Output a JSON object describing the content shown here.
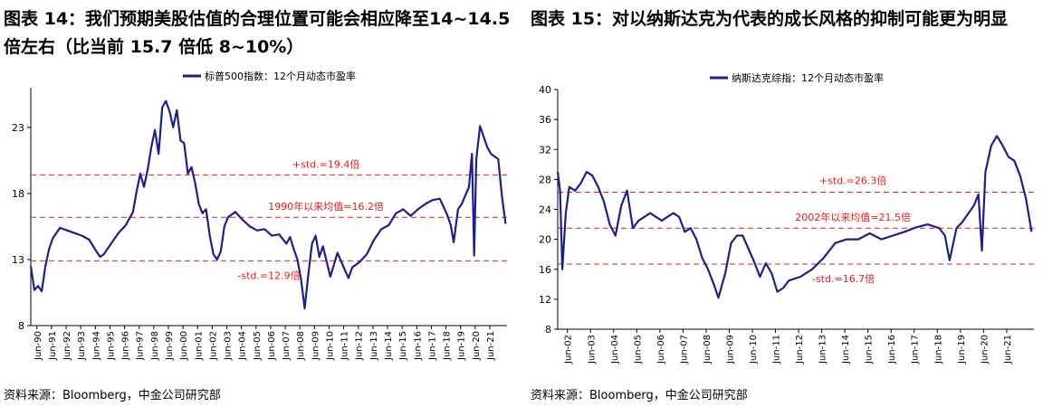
{
  "figures": [
    {
      "title": "图表 14：我们预期美股估值的合理位置可能会相应降至14~14.5 倍左右（比当前 15.7 倍低 8~10%）",
      "source": "资料来源：Bloomberg，中金公司研究部",
      "chart_data": {
        "type": "line",
        "legend_position": "top-center",
        "series": [
          {
            "name": "标普500指数：12个月动态市盈率",
            "color": "#1f1f8a",
            "x": [
              1990.0,
              1990.25,
              1990.5,
              1990.75,
              1991.0,
              1991.25,
              1991.5,
              1991.75,
              1992.0,
              1992.5,
              1993.0,
              1993.5,
              1994.0,
              1994.5,
              1994.75,
              1995.0,
              1995.5,
              1996.0,
              1996.5,
              1997.0,
              1997.25,
              1997.5,
              1997.75,
              1998.0,
              1998.25,
              1998.5,
              1998.75,
              1999.0,
              1999.25,
              1999.5,
              1999.75,
              2000.0,
              2000.25,
              2000.5,
              2000.75,
              2001.0,
              2001.25,
              2001.5,
              2001.75,
              2002.0,
              2002.25,
              2002.5,
              2002.75,
              2003.0,
              2003.25,
              2003.5,
              2004.0,
              2004.5,
              2005.0,
              2005.5,
              2006.0,
              2006.5,
              2007.0,
              2007.5,
              2007.75,
              2008.0,
              2008.25,
              2008.5,
              2008.75,
              2008.95,
              2009.25,
              2009.5,
              2009.75,
              2010.0,
              2010.5,
              2010.75,
              2011.0,
              2011.5,
              2011.75,
              2012.0,
              2012.5,
              2013.0,
              2013.5,
              2014.0,
              2014.5,
              2015.0,
              2015.5,
              2016.0,
              2016.5,
              2017.0,
              2017.5,
              2018.0,
              2018.5,
              2018.75,
              2018.95,
              2019.25,
              2019.5,
              2020.0,
              2020.2,
              2020.35,
              2020.5,
              2020.75,
              2021.0,
              2021.25,
              2021.5,
              2021.75,
              2022.0,
              2022.25,
              2022.5
            ],
            "values": [
              12.5,
              10.7,
              11.0,
              10.6,
              12.5,
              13.8,
              14.6,
              15.0,
              15.4,
              15.2,
              15.0,
              14.8,
              14.5,
              13.6,
              13.2,
              13.4,
              14.2,
              15.0,
              15.6,
              16.6,
              18.2,
              19.5,
              18.5,
              19.8,
              21.5,
              22.8,
              21.0,
              24.5,
              25.0,
              24.2,
              23.0,
              24.3,
              22.0,
              21.8,
              19.5,
              20.0,
              18.8,
              17.2,
              16.5,
              16.8,
              14.8,
              13.4,
              13.0,
              13.6,
              15.5,
              16.2,
              16.6,
              16.0,
              15.5,
              15.2,
              15.3,
              14.8,
              14.9,
              14.2,
              14.7,
              13.8,
              13.0,
              11.5,
              9.3,
              11.4,
              14.2,
              14.8,
              13.2,
              14.0,
              11.7,
              12.6,
              13.5,
              12.2,
              11.6,
              12.4,
              12.8,
              13.4,
              14.5,
              15.3,
              15.6,
              16.5,
              16.8,
              16.3,
              16.8,
              17.2,
              17.5,
              17.6,
              16.4,
              15.6,
              14.3,
              16.8,
              17.2,
              18.5,
              21.0,
              13.3,
              20.6,
              23.1,
              22.3,
              21.5,
              21.0,
              20.8,
              20.6,
              17.8,
              15.7
            ]
          }
        ],
        "reference_lines": [
          {
            "label": "+std.=19.4倍",
            "value": 19.4,
            "color": "#e41a1c"
          },
          {
            "label": "1990年以来均值=16.2倍",
            "value": 16.2,
            "color": "#e41a1c"
          },
          {
            "label": "-std.=12.9倍",
            "value": 12.9,
            "color": "#e41a1c"
          }
        ],
        "y_ticks": [
          8,
          13,
          18,
          23
        ],
        "ylim": [
          8,
          26
        ],
        "xlim": [
          1990.0,
          2022.6
        ],
        "x_tick_labels": [
          "Jun-90",
          "Jun-91",
          "Jun-92",
          "Jun-93",
          "Jun-94",
          "Jun-95",
          "Jun-96",
          "Jun-97",
          "Jun-98",
          "Jun-99",
          "Jun-00",
          "Jun-01",
          "Jun-02",
          "Jun-03",
          "Jun-04",
          "Jun-05",
          "Jun-06",
          "Jun-07",
          "Jun-08",
          "Jun-09",
          "Jun-10",
          "Jun-11",
          "Jun-12",
          "Jun-13",
          "Jun-14",
          "Jun-15",
          "Jun-16",
          "Jun-17",
          "Jun-18",
          "Jun-19",
          "Jun-20",
          "Jun-21"
        ],
        "grid": false
      }
    },
    {
      "title": "图表 15：对以纳斯达克为代表的成长风格的抑制可能更为明显",
      "source": "资料来源：Bloomberg，中金公司研究部",
      "chart_data": {
        "type": "line",
        "legend_position": "top-center",
        "series": [
          {
            "name": "纳斯达克综指：12个月动态市盈率",
            "color": "#1f1f8a",
            "x": [
              2002.0,
              2002.1,
              2002.2,
              2002.35,
              2002.5,
              2002.75,
              2003.0,
              2003.25,
              2003.5,
              2003.75,
              2004.0,
              2004.25,
              2004.5,
              2004.75,
              2005.0,
              2005.25,
              2005.5,
              2006.0,
              2006.5,
              2007.0,
              2007.25,
              2007.5,
              2007.75,
              2008.0,
              2008.25,
              2008.5,
              2008.75,
              2008.95,
              2009.25,
              2009.5,
              2009.75,
              2010.0,
              2010.5,
              2010.75,
              2011.0,
              2011.25,
              2011.5,
              2011.75,
              2012.0,
              2012.5,
              2013.0,
              2013.5,
              2014.0,
              2014.5,
              2015.0,
              2015.5,
              2016.0,
              2016.5,
              2017.0,
              2017.5,
              2018.0,
              2018.5,
              2018.75,
              2018.95,
              2019.25,
              2019.5,
              2020.0,
              2020.2,
              2020.35,
              2020.5,
              2020.75,
              2021.0,
              2021.25,
              2021.5,
              2021.75,
              2022.0,
              2022.25,
              2022.5
            ],
            "values": [
              29.0,
              26.5,
              16.0,
              23.5,
              27.0,
              26.5,
              27.5,
              29.0,
              28.5,
              27.0,
              25.0,
              22.0,
              20.5,
              24.5,
              26.5,
              21.5,
              22.5,
              23.5,
              22.5,
              23.5,
              23.0,
              21.0,
              21.5,
              20.0,
              17.5,
              16.0,
              14.0,
              12.2,
              15.5,
              19.5,
              20.5,
              20.5,
              17.0,
              15.0,
              16.8,
              15.5,
              13.0,
              13.5,
              14.5,
              15.0,
              16.0,
              17.5,
              19.5,
              20.0,
              20.0,
              20.8,
              20.0,
              20.5,
              21.0,
              21.6,
              22.0,
              21.5,
              20.5,
              17.2,
              21.5,
              22.3,
              24.5,
              26.0,
              18.5,
              29.0,
              32.5,
              33.8,
              32.5,
              31.0,
              30.5,
              28.5,
              25.5,
              21.0
            ]
          }
        ],
        "reference_lines": [
          {
            "label": "+std.=26.3倍",
            "value": 26.3,
            "color": "#e41a1c"
          },
          {
            "label": "2002年以来均值=21.5倍",
            "value": 21.5,
            "color": "#e41a1c"
          },
          {
            "label": "-std.=16.7倍",
            "value": 16.7,
            "color": "#e41a1c"
          }
        ],
        "y_ticks": [
          8,
          12,
          16,
          20,
          24,
          28,
          32,
          36,
          40
        ],
        "ylim": [
          8,
          40
        ],
        "xlim": [
          2002.0,
          2022.6
        ],
        "x_tick_labels": [
          "Jun-02",
          "Jun-03",
          "Jun-04",
          "Jun-05",
          "Jun-06",
          "Jun-07",
          "Jun-08",
          "Jun-09",
          "Jun-10",
          "Jun-11",
          "Jun-12",
          "Jun-13",
          "Jun-14",
          "Jun-15",
          "Jun-16",
          "Jun-17",
          "Jun-18",
          "Jun-19",
          "Jun-20",
          "Jun-21"
        ],
        "grid": false
      }
    }
  ]
}
